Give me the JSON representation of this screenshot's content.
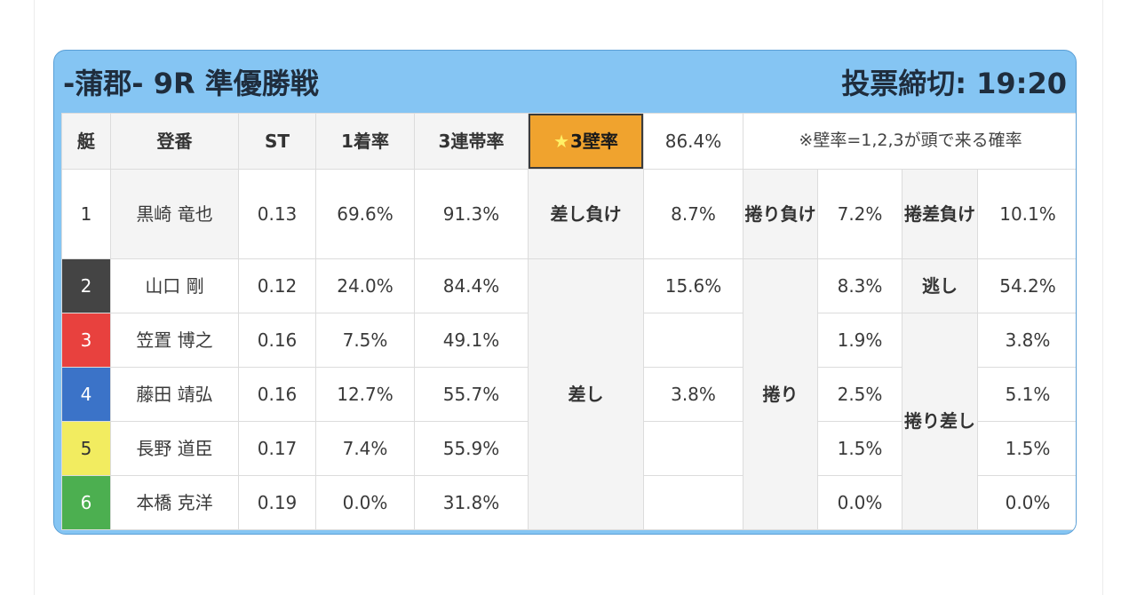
{
  "header": {
    "title": "-蒲郡- 9R 準優勝戦",
    "deadline": "投票締切: 19:20"
  },
  "columns": {
    "boat": "艇",
    "name": "登番",
    "st": "ST",
    "first_rate": "1着率",
    "trio_rate": "3連帯率"
  },
  "wall": {
    "star": "★",
    "label": "3壁率",
    "value": "86.4%",
    "note": "※壁率=1,2,3が頭で来る確率"
  },
  "rows": [
    {
      "boat": "1",
      "name": "黒崎 竜也",
      "st": "0.13",
      "first_rate": "69.6%",
      "trio_rate": "91.3%"
    },
    {
      "boat": "2",
      "name": "山口 剛",
      "st": "0.12",
      "first_rate": "24.0%",
      "trio_rate": "84.4%"
    },
    {
      "boat": "3",
      "name": "笠置 博之",
      "st": "0.16",
      "first_rate": "7.5%",
      "trio_rate": "49.1%"
    },
    {
      "boat": "4",
      "name": "藤田 靖弘",
      "st": "0.16",
      "first_rate": "12.7%",
      "trio_rate": "55.7%"
    },
    {
      "boat": "5",
      "name": "長野 道臣",
      "st": "0.17",
      "first_rate": "7.4%",
      "trio_rate": "55.9%"
    },
    {
      "boat": "6",
      "name": "本橋 克洋",
      "st": "0.19",
      "first_rate": "0.0%",
      "trio_rate": "31.8%"
    }
  ],
  "kimarite": {
    "sashi_loss": {
      "label_line1": "差し",
      "label_line2": "負け",
      "value": "8.7%"
    },
    "makuri_loss": {
      "label_line1": "捲り",
      "label_line2": "負け",
      "value": "7.2%"
    },
    "makurizashi_loss": {
      "label_line1": "捲差",
      "label_line2": "負け",
      "value": "10.1%"
    },
    "sashi": {
      "label": "差し",
      "values": [
        "15.6%",
        "",
        "3.8%",
        "",
        ""
      ]
    },
    "makuri": {
      "label": "捲り",
      "values": [
        "8.3%",
        "1.9%",
        "2.5%",
        "1.5%",
        "0.0%"
      ]
    },
    "nige": {
      "label": "逃し",
      "value": "54.2%"
    },
    "makurizashi": {
      "label_line1": "捲り",
      "label_line2": "差し",
      "values": [
        "3.8%",
        "5.1%",
        "1.5%",
        "0.0%"
      ]
    }
  },
  "colors": {
    "card_background": "#85c5f3",
    "wall_highlight": "#f0a32e",
    "boat_1": "#ffffff",
    "boat_2": "#444444",
    "boat_3": "#e8413e",
    "boat_4": "#3b73c8",
    "boat_5": "#f2ec60",
    "boat_6": "#4caf50"
  }
}
